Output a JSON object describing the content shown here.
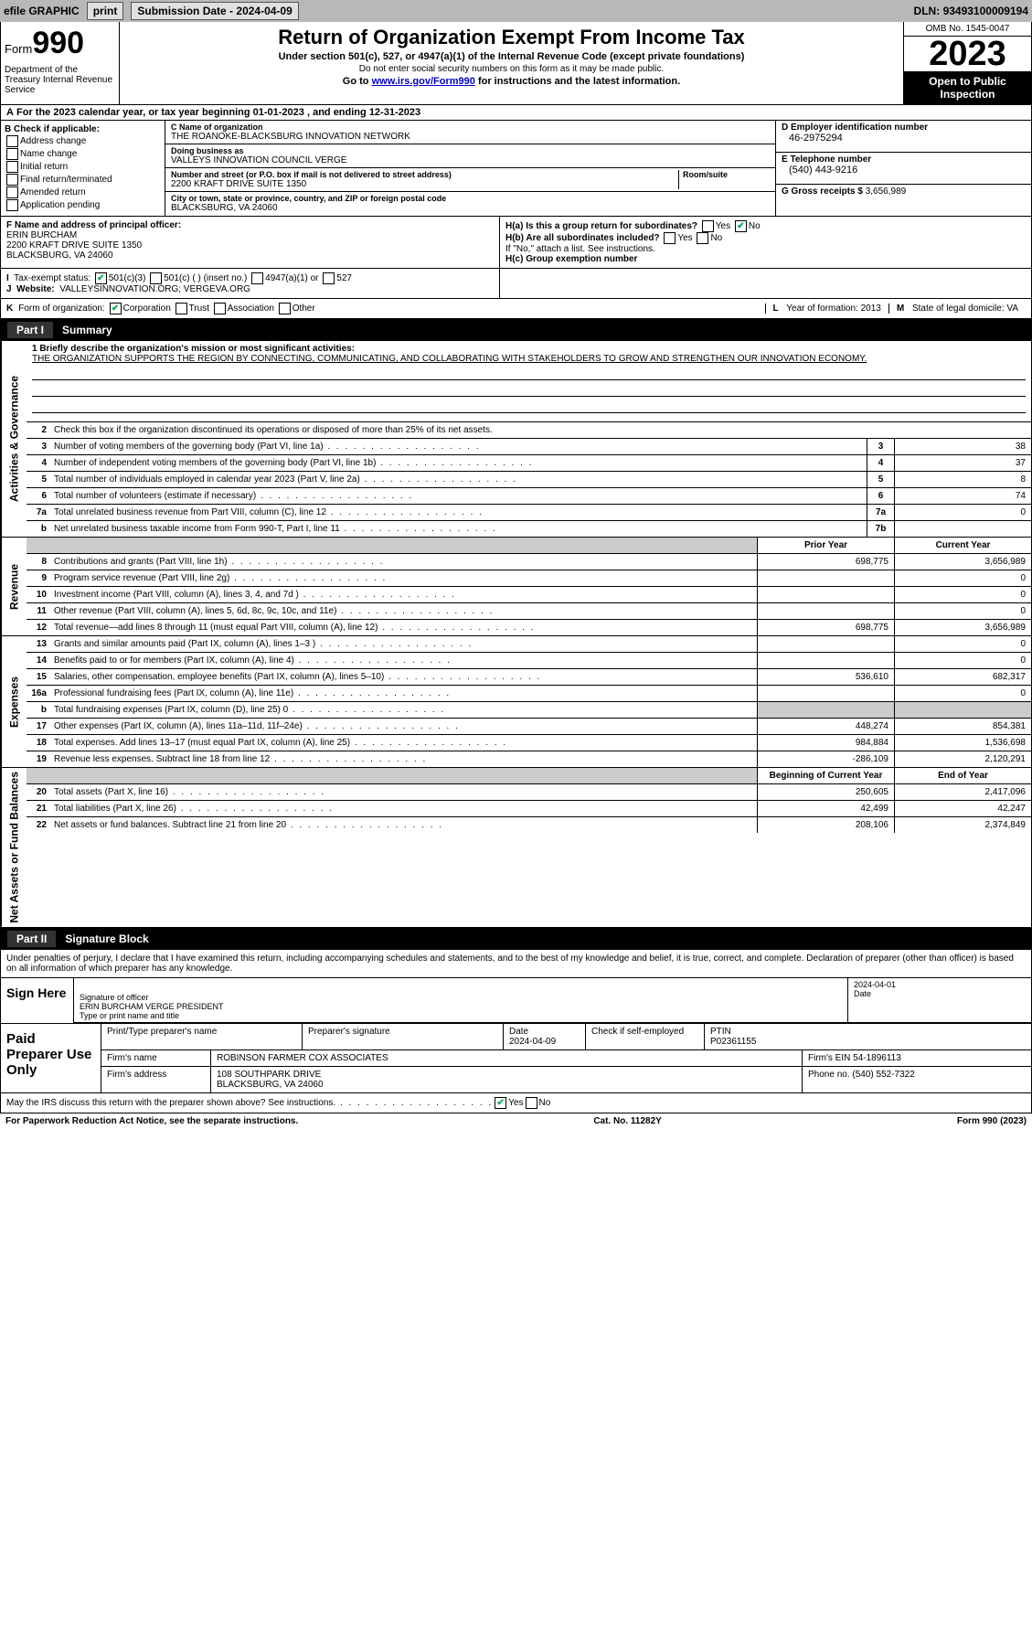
{
  "topbar": {
    "efile_label": "efile GRAPHIC",
    "print_label": "print",
    "submission_label": "Submission Date -",
    "submission_date": "2024-04-09",
    "dln_label": "DLN:",
    "dln": "93493100009194"
  },
  "header": {
    "form_word": "Form",
    "form_number": "990",
    "title": "Return of Organization Exempt From Income Tax",
    "subtitle": "Under section 501(c), 527, or 4947(a)(1) of the Internal Revenue Code (except private foundations)",
    "ssn_note": "Do not enter social security numbers on this form as it may be made public.",
    "goto_prefix": "Go to ",
    "goto_link": "www.irs.gov/Form990",
    "goto_suffix": " for instructions and the latest information.",
    "dept": "Department of the Treasury Internal Revenue Service",
    "omb": "OMB No. 1545-0047",
    "year": "2023",
    "open_public": "Open to Public Inspection"
  },
  "row_a": {
    "label": "A",
    "text": "For the 2023 calendar year, or tax year beginning",
    "begin": "01-01-2023",
    "and_ending": ", and ending",
    "end": "12-31-2023"
  },
  "section_b": {
    "label": "B Check if applicable:",
    "items": [
      "Address change",
      "Name change",
      "Initial return",
      "Final return/terminated",
      "Amended return",
      "Application pending"
    ]
  },
  "section_c": {
    "name_lbl": "C Name of organization",
    "name": "THE ROANOKE-BLACKSBURG INNOVATION NETWORK",
    "dba_lbl": "Doing business as",
    "dba": "VALLEYS INNOVATION COUNCIL VERGE",
    "street_lbl": "Number and street (or P.O. box if mail is not delivered to street address)",
    "street": "2200 KRAFT DRIVE SUITE 1350",
    "room_lbl": "Room/suite",
    "city_lbl": "City or town, state or province, country, and ZIP or foreign postal code",
    "city": "BLACKSBURG, VA  24060"
  },
  "section_d": {
    "lbl": "D Employer identification number",
    "val": "46-2975294"
  },
  "section_e": {
    "lbl": "E Telephone number",
    "val": "(540) 443-9216"
  },
  "section_g": {
    "lbl": "G Gross receipts $",
    "val": "3,656,989"
  },
  "section_f": {
    "lbl": "F  Name and address of principal officer:",
    "name": "ERIN BURCHAM",
    "street": "2200 KRAFT DRIVE SUITE 1350",
    "city": "BLACKSBURG, VA  24060"
  },
  "section_h": {
    "a_lbl": "H(a)  Is this a group return for subordinates?",
    "a_yes": "Yes",
    "a_no": "No",
    "b_lbl": "H(b)  Are all subordinates included?",
    "b_note": "If \"No,\" attach a list. See instructions.",
    "c_lbl": "H(c)  Group exemption number"
  },
  "row_i": {
    "lbl": "I",
    "text": "Tax-exempt status:",
    "opt1": "501(c)(3)",
    "opt2": "501(c) (  ) (insert no.)",
    "opt3": "4947(a)(1) or",
    "opt4": "527"
  },
  "row_j": {
    "lbl": "J",
    "text": "Website:",
    "val": "VALLEYSINNOVATION.ORG; VERGEVA.ORG"
  },
  "row_k": {
    "lbl": "K",
    "text": "Form of organization:",
    "opts": [
      "Corporation",
      "Trust",
      "Association",
      "Other"
    ]
  },
  "row_l": {
    "lbl": "L",
    "text": "Year of formation:",
    "val": "2013"
  },
  "row_m": {
    "lbl": "M",
    "text": "State of legal domicile:",
    "val": "VA"
  },
  "part1": {
    "hdr_part": "Part I",
    "hdr_title": "Summary",
    "tabs": [
      "Activities & Governance",
      "Revenue",
      "Expenses",
      "Net Assets or Fund Balances"
    ],
    "mission_lbl": "1  Briefly describe the organization's mission or most significant activities:",
    "mission": "THE ORGANIZATION SUPPORTS THE REGION BY CONNECTING, COMMUNICATING, AND COLLABORATING WITH STAKEHOLDERS TO GROW AND STRENGTHEN OUR INNOVATION ECONOMY.",
    "line2": "Check this box          if the organization discontinued its operations or disposed of more than 25% of its net assets.",
    "gov_rows": [
      {
        "n": "3",
        "t": "Number of voting members of the governing body (Part VI, line 1a)",
        "box": "3",
        "v": "38"
      },
      {
        "n": "4",
        "t": "Number of independent voting members of the governing body (Part VI, line 1b)",
        "box": "4",
        "v": "37"
      },
      {
        "n": "5",
        "t": "Total number of individuals employed in calendar year 2023 (Part V, line 2a)",
        "box": "5",
        "v": "8"
      },
      {
        "n": "6",
        "t": "Total number of volunteers (estimate if necessary)",
        "box": "6",
        "v": "74"
      },
      {
        "n": "7a",
        "t": "Total unrelated business revenue from Part VIII, column (C), line 12",
        "box": "7a",
        "v": "0"
      },
      {
        "n": "b",
        "t": "Net unrelated business taxable income from Form 990-T, Part I, line 11",
        "box": "7b",
        "v": ""
      }
    ],
    "col_prior": "Prior Year",
    "col_current": "Current Year",
    "rev_rows": [
      {
        "n": "8",
        "t": "Contributions and grants (Part VIII, line 1h)",
        "p": "698,775",
        "c": "3,656,989"
      },
      {
        "n": "9",
        "t": "Program service revenue (Part VIII, line 2g)",
        "p": "",
        "c": "0"
      },
      {
        "n": "10",
        "t": "Investment income (Part VIII, column (A), lines 3, 4, and 7d )",
        "p": "",
        "c": "0"
      },
      {
        "n": "11",
        "t": "Other revenue (Part VIII, column (A), lines 5, 6d, 8c, 9c, 10c, and 11e)",
        "p": "",
        "c": "0"
      },
      {
        "n": "12",
        "t": "Total revenue—add lines 8 through 11 (must equal Part VIII, column (A), line 12)",
        "p": "698,775",
        "c": "3,656,989"
      }
    ],
    "exp_rows": [
      {
        "n": "13",
        "t": "Grants and similar amounts paid (Part IX, column (A), lines 1–3 )",
        "p": "",
        "c": "0"
      },
      {
        "n": "14",
        "t": "Benefits paid to or for members (Part IX, column (A), line 4)",
        "p": "",
        "c": "0"
      },
      {
        "n": "15",
        "t": "Salaries, other compensation, employee benefits (Part IX, column (A), lines 5–10)",
        "p": "536,610",
        "c": "682,317"
      },
      {
        "n": "16a",
        "t": "Professional fundraising fees (Part IX, column (A), line 11e)",
        "p": "",
        "c": "0"
      },
      {
        "n": "b",
        "t": "Total fundraising expenses (Part IX, column (D), line 25) 0",
        "p": "",
        "c": "",
        "shade": true
      },
      {
        "n": "17",
        "t": "Other expenses (Part IX, column (A), lines 11a–11d, 11f–24e)",
        "p": "448,274",
        "c": "854,381"
      },
      {
        "n": "18",
        "t": "Total expenses. Add lines 13–17 (must equal Part IX, column (A), line 25)",
        "p": "984,884",
        "c": "1,536,698"
      },
      {
        "n": "19",
        "t": "Revenue less expenses. Subtract line 18 from line 12",
        "p": "-286,109",
        "c": "2,120,291"
      }
    ],
    "col_begin": "Beginning of Current Year",
    "col_end": "End of Year",
    "na_rows": [
      {
        "n": "20",
        "t": "Total assets (Part X, line 16)",
        "p": "250,605",
        "c": "2,417,096"
      },
      {
        "n": "21",
        "t": "Total liabilities (Part X, line 26)",
        "p": "42,499",
        "c": "42,247"
      },
      {
        "n": "22",
        "t": "Net assets or fund balances. Subtract line 21 from line 20",
        "p": "208,106",
        "c": "2,374,849"
      }
    ]
  },
  "part2": {
    "hdr_part": "Part II",
    "hdr_title": "Signature Block",
    "perjury": "Under penalties of perjury, I declare that I have examined this return, including accompanying schedules and statements, and to the best of my knowledge and belief, it is true, correct, and complete. Declaration of preparer (other than officer) is based on all information of which preparer has any knowledge.",
    "sign_here": "Sign Here",
    "sig_of_officer": "Signature of officer",
    "officer": "ERIN BURCHAM  VERGE PRESIDENT",
    "type_name": "Type or print name and title",
    "date_lbl": "Date",
    "date": "2024-04-01",
    "paid_label": "Paid Preparer Use Only",
    "print_name_lbl": "Print/Type preparer's name",
    "prep_sig_lbl": "Preparer's signature",
    "prep_date_lbl": "Date",
    "prep_date": "2024-04-09",
    "check_self": "Check        if self-employed",
    "ptin_lbl": "PTIN",
    "ptin": "P02361155",
    "firm_name_lbl": "Firm's name",
    "firm_name": "ROBINSON FARMER COX ASSOCIATES",
    "firm_ein_lbl": "Firm's EIN",
    "firm_ein": "54-1896113",
    "firm_addr_lbl": "Firm's address",
    "firm_addr1": "108 SOUTHPARK DRIVE",
    "firm_addr2": "BLACKSBURG, VA  24060",
    "phone_lbl": "Phone no.",
    "phone": "(540) 552-7322",
    "discuss": "May the IRS discuss this return with the preparer shown above? See instructions.",
    "yes": "Yes",
    "no": "No"
  },
  "footer": {
    "left": "For Paperwork Reduction Act Notice, see the separate instructions.",
    "mid": "Cat. No. 11282Y",
    "right": "Form 990 (2023)"
  }
}
